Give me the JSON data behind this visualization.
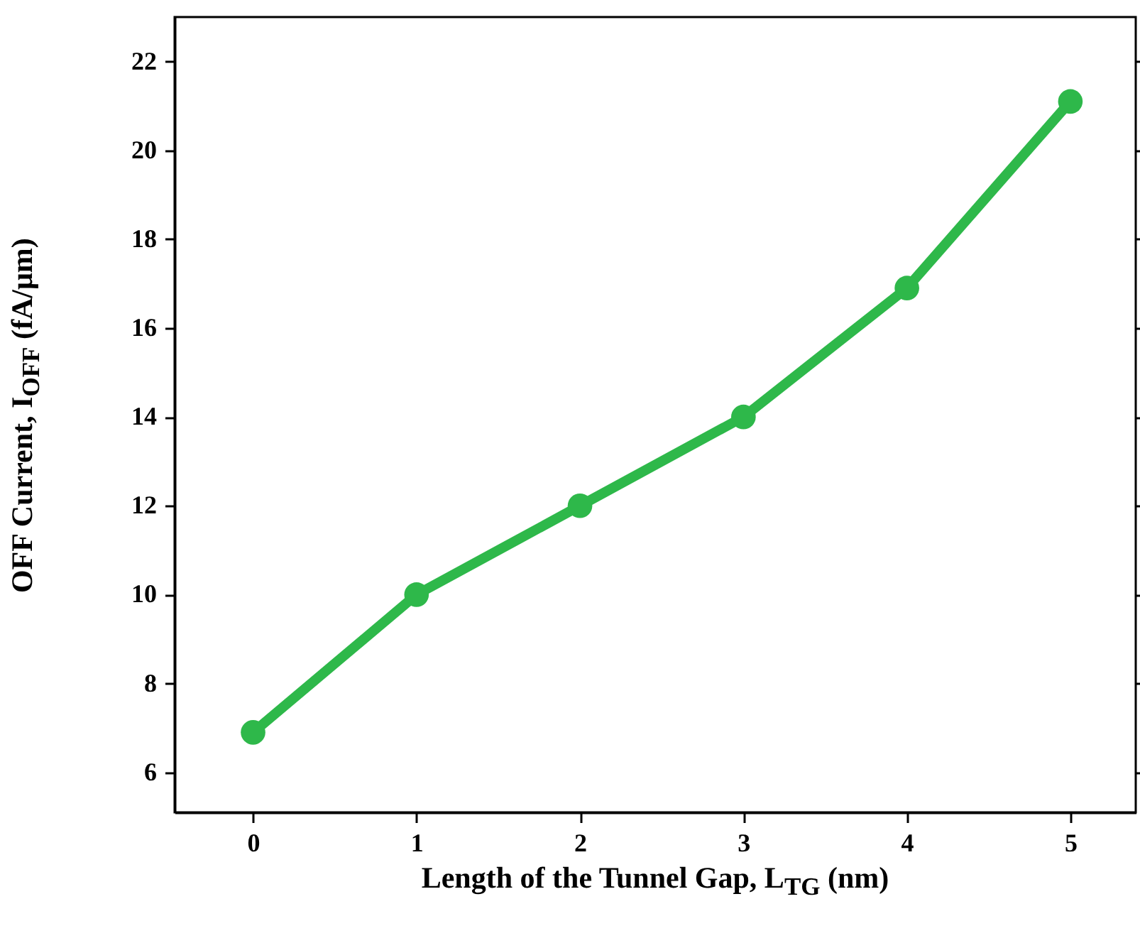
{
  "chart_data": {
    "type": "line",
    "xlabel": "Length of the Tunnel Gap, L$_{TG}$ (nm)",
    "ylabel": "OFF Current, I$_{OFF}$ (fA/μm)",
    "x": [
      0,
      1,
      2,
      3,
      4,
      5
    ],
    "series": [
      {
        "color": "#2eb84a",
        "values": [
          6.9,
          10.0,
          12.0,
          14.0,
          16.9,
          21.1
        ]
      }
    ],
    "xlim": [
      -0.48,
      5.4
    ],
    "ylim": [
      5.1,
      23
    ],
    "xticks": [
      0,
      1,
      2,
      3,
      4,
      5
    ],
    "yticks": [
      6,
      8,
      10,
      12,
      14,
      16,
      18,
      20,
      22
    ],
    "grid": false,
    "marker": "circle",
    "line_style": "solid"
  }
}
